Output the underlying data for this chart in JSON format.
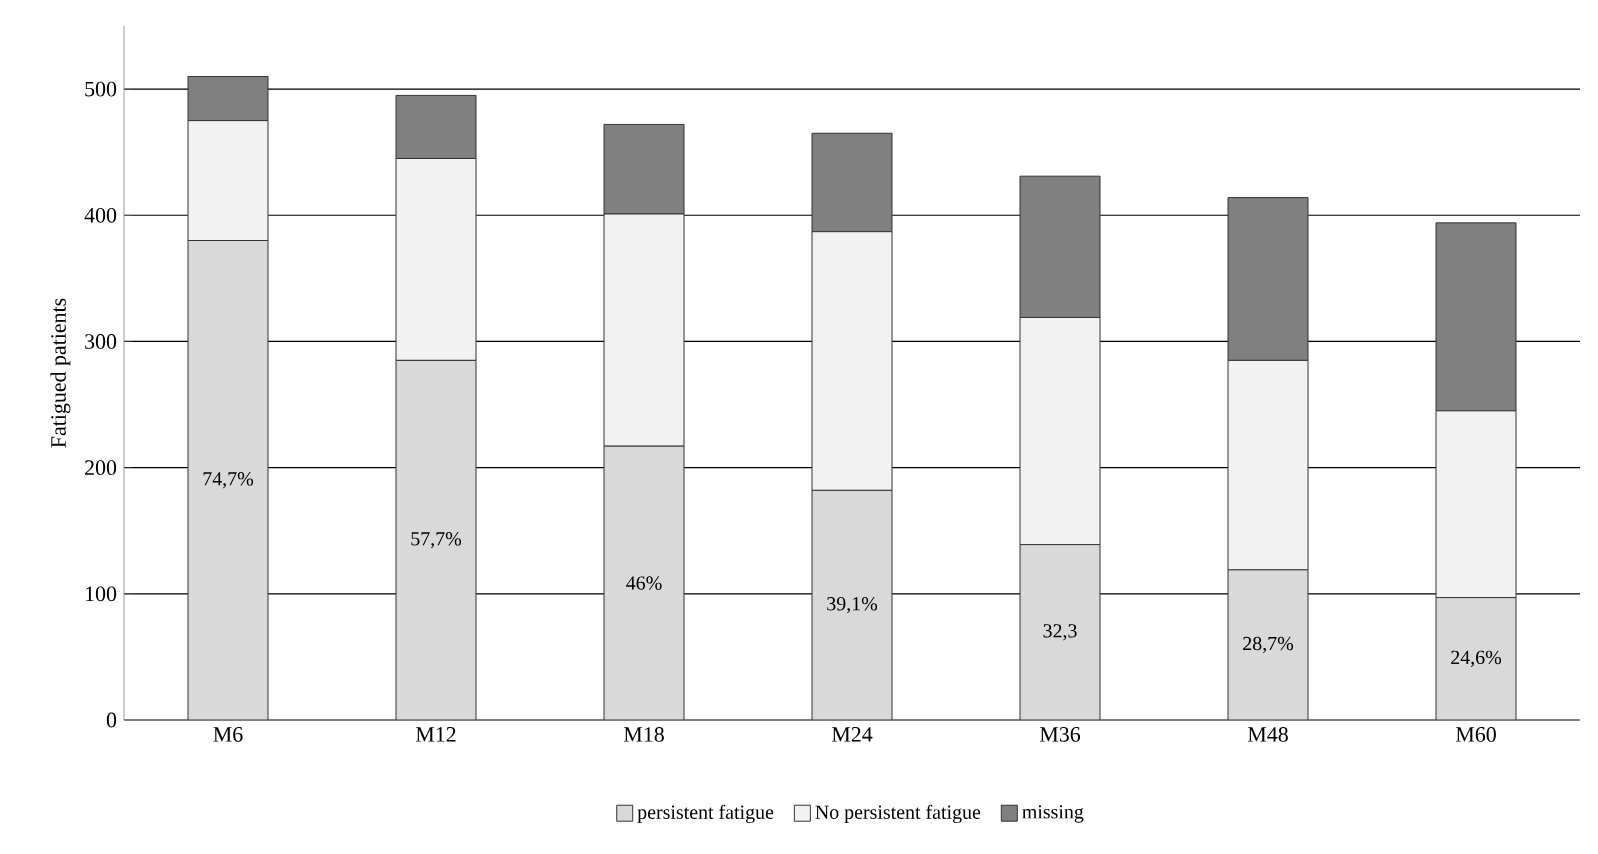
{
  "chart_data": {
    "type": "bar",
    "stacked": true,
    "ylabel": "Fatigued patients",
    "categories": [
      "M6",
      "M12",
      "M18",
      "M24",
      "M36",
      "M48",
      "M60"
    ],
    "series": [
      {
        "name": "persistent fatigue",
        "color": "#d9d9d9",
        "values": [
          380,
          285,
          217,
          182,
          139,
          119,
          97
        ]
      },
      {
        "name": "No persistent fatigue",
        "color": "#f2f2f2",
        "values": [
          95,
          160,
          184,
          205,
          180,
          166,
          148
        ]
      },
      {
        "name": "missing",
        "color": "#808080",
        "values": [
          35,
          50,
          71,
          78,
          112,
          129,
          149
        ]
      }
    ],
    "annotations": [
      "74,7%",
      "57,7%",
      "46%",
      "39,1%",
      "32,3",
      "28,7%",
      "24,6%"
    ],
    "ylim": [
      0,
      550
    ],
    "yticks": [
      0,
      100,
      200,
      300,
      400,
      500
    ],
    "grid": "y",
    "legend": "bottom"
  }
}
